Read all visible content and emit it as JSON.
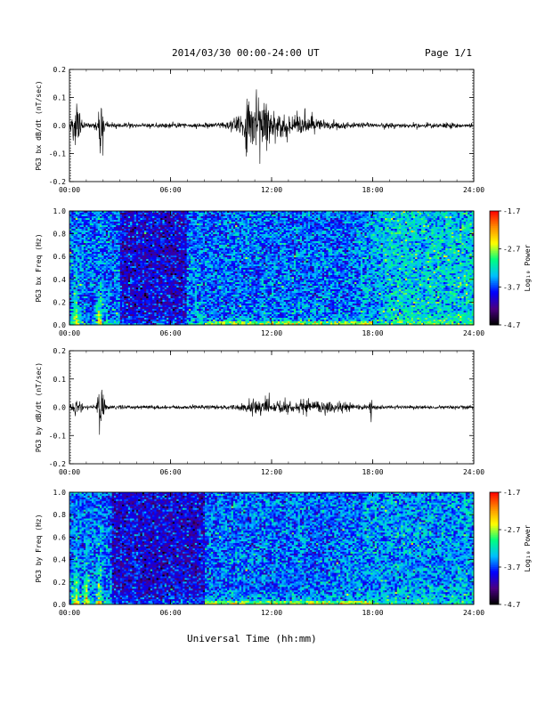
{
  "header": {
    "title": "2014/03/30  00:00-24:00 UT",
    "page": "Page 1/1"
  },
  "x_axis_title": "Universal Time (hh:mm)",
  "colorbar": {
    "label": "Log₁₀ Power",
    "ticks": [
      "-1.7",
      "-2.7",
      "-3.7",
      "-4.7"
    ],
    "range": [
      -4.7,
      -1.7
    ],
    "colors": [
      "#000000",
      "#4b0082",
      "#0000ff",
      "#00bfff",
      "#00ff7f",
      "#ffff00",
      "#ff8c00",
      "#ff0000"
    ]
  },
  "chart_data": [
    {
      "type": "line",
      "ylabel": "PG3 bx dB/dt (nT/sec)",
      "xlim": [
        "00:00",
        "24:00"
      ],
      "xticks": [
        "00:00",
        "06:00",
        "12:00",
        "18:00",
        "24:00"
      ],
      "ylim": [
        -0.2,
        0.2
      ],
      "yticks": [
        "0.2",
        "0.1",
        "0.0",
        "-0.1",
        "-0.2"
      ],
      "bursts": [
        {
          "center": "00:24",
          "halfwidth_min": 15,
          "amplitude": 0.1
        },
        {
          "center": "01:48",
          "halfwidth_min": 12,
          "amplitude": 0.14
        },
        {
          "center": "11:00",
          "halfwidth_min": 60,
          "amplitude": 0.12
        },
        {
          "center": "13:30",
          "halfwidth_min": 120,
          "amplitude": 0.04
        }
      ],
      "baseline_noise": 0.008
    },
    {
      "type": "heatmap",
      "ylabel": "PG3 bx Freq (Hz)",
      "xlim": [
        "00:00",
        "24:00"
      ],
      "xticks": [
        "00:00",
        "06:00",
        "12:00",
        "18:00",
        "24:00"
      ],
      "ylim": [
        0.0,
        1.0
      ],
      "yticks": [
        "1.0",
        "0.8",
        "0.6",
        "0.4",
        "0.2",
        "0.0"
      ],
      "z_label": "Log₁₀ Power",
      "features": {
        "quiet_band": [
          "03:00",
          "07:00"
        ],
        "enhanced_region": [
          "17:00",
          "24:00"
        ],
        "low_freq_line": "0.0-0.03 Hz",
        "broadband_bursts": [
          "00:24",
          "01:48"
        ]
      }
    },
    {
      "type": "line",
      "ylabel": "PG3 by dB/dt (nT/sec)",
      "xlim": [
        "00:00",
        "24:00"
      ],
      "xticks": [
        "00:00",
        "06:00",
        "12:00",
        "18:00",
        "24:00"
      ],
      "ylim": [
        -0.2,
        0.2
      ],
      "yticks": [
        "0.2",
        "0.1",
        "0.0",
        "-0.1",
        "-0.2"
      ],
      "bursts": [
        {
          "center": "00:24",
          "halfwidth_min": 15,
          "amplitude": 0.03
        },
        {
          "center": "01:54",
          "halfwidth_min": 10,
          "amplitude": 0.19
        },
        {
          "center": "11:30",
          "halfwidth_min": 60,
          "amplitude": 0.035
        },
        {
          "center": "14:30",
          "halfwidth_min": 120,
          "amplitude": 0.025
        },
        {
          "center": "17:54",
          "halfwidth_min": 4,
          "amplitude": 0.07
        }
      ],
      "baseline_noise": 0.006
    },
    {
      "type": "heatmap",
      "ylabel": "PG3 by Freq (Hz)",
      "xlim": [
        "00:00",
        "24:00"
      ],
      "xticks": [
        "00:00",
        "06:00",
        "12:00",
        "18:00",
        "24:00"
      ],
      "ylim": [
        0.0,
        1.0
      ],
      "yticks": [
        "1.0",
        "0.8",
        "0.6",
        "0.4",
        "0.2",
        "0.0"
      ],
      "z_label": "Log₁₀ Power",
      "features": {
        "quiet_band": [
          "02:30",
          "08:00"
        ],
        "enhanced_region": [
          "16:00",
          "24:00"
        ],
        "low_freq_line": "0.0-0.03 Hz",
        "broadband_bursts": [
          "00:24",
          "01:00",
          "01:48"
        ]
      }
    }
  ]
}
